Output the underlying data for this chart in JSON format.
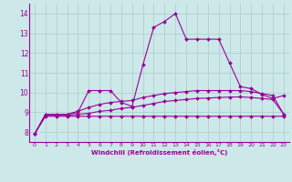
{
  "xlabel": "Windchill (Refroidissement éolien,°C)",
  "x_values": [
    0,
    1,
    2,
    3,
    4,
    5,
    6,
    7,
    8,
    9,
    10,
    11,
    12,
    13,
    14,
    15,
    16,
    17,
    18,
    19,
    20,
    21,
    22,
    23
  ],
  "line1": [
    7.9,
    8.9,
    8.9,
    8.9,
    9.0,
    10.1,
    10.1,
    10.1,
    9.5,
    9.3,
    11.4,
    13.3,
    13.6,
    14.0,
    12.7,
    12.7,
    12.7,
    12.7,
    11.5,
    10.3,
    10.2,
    9.9,
    9.7,
    9.85
  ],
  "line2": [
    7.9,
    8.9,
    8.9,
    8.9,
    9.05,
    9.25,
    9.4,
    9.5,
    9.55,
    9.6,
    9.75,
    9.85,
    9.95,
    10.0,
    10.05,
    10.1,
    10.1,
    10.1,
    10.1,
    10.1,
    10.05,
    9.95,
    9.85,
    8.9
  ],
  "line3": [
    7.9,
    8.85,
    8.85,
    8.85,
    8.9,
    8.95,
    9.05,
    9.1,
    9.2,
    9.25,
    9.35,
    9.45,
    9.55,
    9.6,
    9.65,
    9.7,
    9.72,
    9.75,
    9.77,
    9.78,
    9.75,
    9.7,
    9.65,
    8.9
  ],
  "line4": [
    7.9,
    8.8,
    8.8,
    8.8,
    8.8,
    8.8,
    8.8,
    8.8,
    8.8,
    8.8,
    8.8,
    8.8,
    8.8,
    8.8,
    8.8,
    8.8,
    8.8,
    8.8,
    8.8,
    8.8,
    8.8,
    8.8,
    8.8,
    8.8
  ],
  "line_color": "#990099",
  "bg_color": "#cce8e8",
  "grid_color": "#aacccc",
  "ylim": [
    7.5,
    14.5
  ],
  "xlim": [
    -0.5,
    23.5
  ],
  "yticks": [
    8,
    9,
    10,
    11,
    12,
    13,
    14
  ],
  "xticks": [
    0,
    1,
    2,
    3,
    4,
    5,
    6,
    7,
    8,
    9,
    10,
    11,
    12,
    13,
    14,
    15,
    16,
    17,
    18,
    19,
    20,
    21,
    22,
    23
  ]
}
